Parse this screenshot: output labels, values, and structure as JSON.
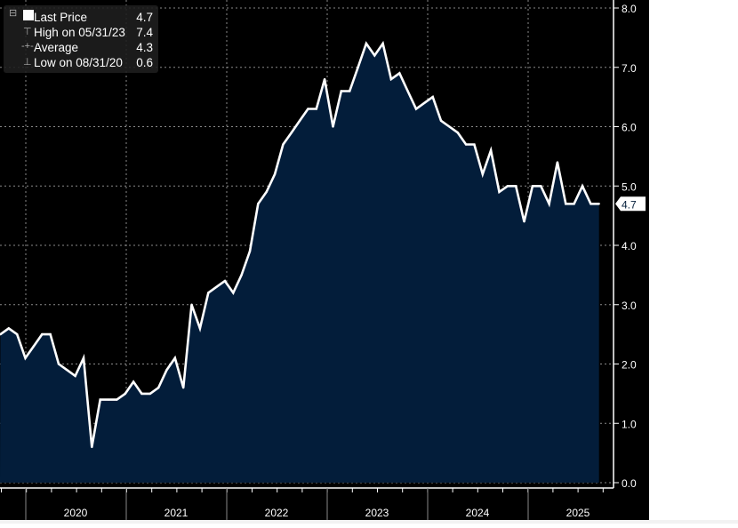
{
  "legend": {
    "last_price": {
      "label": "Last Price",
      "value": "4.7"
    },
    "high": {
      "label": "High on 05/31/23",
      "value": "7.4"
    },
    "average": {
      "label": "Average",
      "value": "4.3"
    },
    "low": {
      "label": "Low on 08/31/20",
      "value": "0.6"
    }
  },
  "colors": {
    "line": "#ffffff",
    "fill": "#031d3a",
    "background": "#000000",
    "grid": "#8a8a8a"
  },
  "chart_data": {
    "type": "area",
    "title": "",
    "xlabel": "",
    "ylabel": "",
    "frequency": "monthly",
    "start": "2019-09",
    "end": "2025-09",
    "values": [
      2.5,
      2.6,
      2.5,
      2.1,
      2.3,
      2.5,
      2.5,
      2.0,
      1.9,
      1.8,
      2.1,
      0.6,
      1.4,
      1.4,
      1.4,
      1.5,
      1.7,
      1.5,
      1.5,
      1.6,
      1.9,
      2.1,
      1.6,
      3.0,
      2.6,
      3.2,
      3.3,
      3.4,
      3.2,
      3.5,
      3.9,
      4.7,
      4.9,
      5.2,
      5.7,
      5.9,
      6.1,
      6.3,
      6.3,
      6.8,
      6.0,
      6.6,
      6.6,
      7.0,
      7.4,
      7.2,
      7.4,
      6.8,
      6.9,
      6.6,
      6.3,
      6.4,
      6.5,
      6.1,
      6.0,
      5.9,
      5.7,
      5.7,
      5.2,
      5.6,
      4.9,
      5.0,
      5.0,
      4.4,
      5.0,
      5.0,
      4.7,
      5.4,
      4.7,
      4.7,
      5.0,
      4.7,
      4.7
    ],
    "ylim": [
      0,
      8
    ],
    "y_ticks": [
      "0.0",
      "1.0",
      "2.0",
      "3.0",
      "4.0",
      "5.0",
      "6.0",
      "7.0",
      "8.0"
    ],
    "x_ticks": [
      "2020",
      "2021",
      "2022",
      "2023",
      "2024",
      "2025"
    ],
    "last_value_label": "4.7",
    "grid": true,
    "legend_position": "top-left"
  }
}
